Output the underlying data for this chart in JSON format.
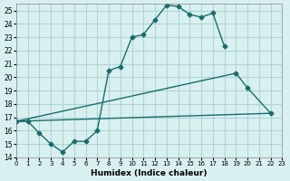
{
  "xlabel": "Humidex (Indice chaleur)",
  "ylabel": "",
  "bg_color": "#d9f0f0",
  "grid_color": "#b0d4d4",
  "line_color": "#1a6b6b",
  "xlim": [
    0,
    23
  ],
  "ylim": [
    14,
    25.5
  ],
  "xticks": [
    0,
    1,
    2,
    3,
    4,
    5,
    6,
    7,
    8,
    9,
    10,
    11,
    12,
    13,
    14,
    15,
    16,
    17,
    18,
    19,
    20,
    21,
    22,
    23
  ],
  "yticks": [
    14,
    15,
    16,
    17,
    18,
    19,
    20,
    21,
    22,
    23,
    24,
    25
  ],
  "lines": [
    {
      "x": [
        0,
        1,
        2,
        3,
        4,
        5,
        6,
        7,
        8,
        9,
        10,
        11,
        12,
        13,
        14,
        15,
        16,
        17,
        18,
        19,
        20,
        21,
        22,
        23
      ],
      "y": [
        16.7,
        16.7,
        15.8,
        15.0,
        14.4,
        15.2,
        15.2,
        16.0,
        20.5,
        20.8,
        23.0,
        23.2,
        24.3,
        25.4,
        25.3,
        24.7,
        24.5,
        24.8,
        22.3,
        null,
        null,
        null,
        null,
        null
      ],
      "marker": "D",
      "markersize": 3
    },
    {
      "x": [
        0,
        1,
        2,
        3,
        4,
        5,
        6,
        7,
        8,
        9,
        10,
        11,
        12,
        13,
        14,
        15,
        16,
        17,
        18,
        19,
        20,
        21,
        22,
        23
      ],
      "y": [
        16.7,
        null,
        null,
        null,
        null,
        null,
        null,
        null,
        null,
        null,
        null,
        null,
        null,
        null,
        null,
        null,
        null,
        null,
        null,
        20.3,
        19.2,
        null,
        17.3,
        null
      ],
      "marker": "D",
      "markersize": 3
    },
    {
      "x": [
        0,
        1,
        2,
        3,
        4,
        5,
        6,
        7,
        8,
        9,
        10,
        11,
        12,
        13,
        14,
        15,
        16,
        17,
        18,
        19,
        20,
        21,
        22,
        23
      ],
      "y": [
        16.7,
        null,
        null,
        null,
        null,
        null,
        null,
        null,
        null,
        null,
        null,
        null,
        null,
        null,
        null,
        null,
        null,
        null,
        null,
        null,
        null,
        null,
        17.3,
        null
      ],
      "marker": "D",
      "markersize": 3
    }
  ],
  "curve1_x": [
    0,
    1,
    2,
    3,
    4,
    5,
    6,
    7,
    8,
    9,
    10,
    11,
    12,
    13,
    14,
    15,
    16,
    17,
    18
  ],
  "curve1_y": [
    16.7,
    16.7,
    15.8,
    15.0,
    14.4,
    15.2,
    15.2,
    16.0,
    20.5,
    20.8,
    23.0,
    23.2,
    24.3,
    25.4,
    25.3,
    24.7,
    24.5,
    24.8,
    22.3
  ],
  "curve2_x": [
    0,
    19,
    20,
    22
  ],
  "curve2_y": [
    16.7,
    20.3,
    19.2,
    17.3
  ],
  "curve3_x": [
    0,
    22
  ],
  "curve3_y": [
    16.7,
    17.3
  ]
}
